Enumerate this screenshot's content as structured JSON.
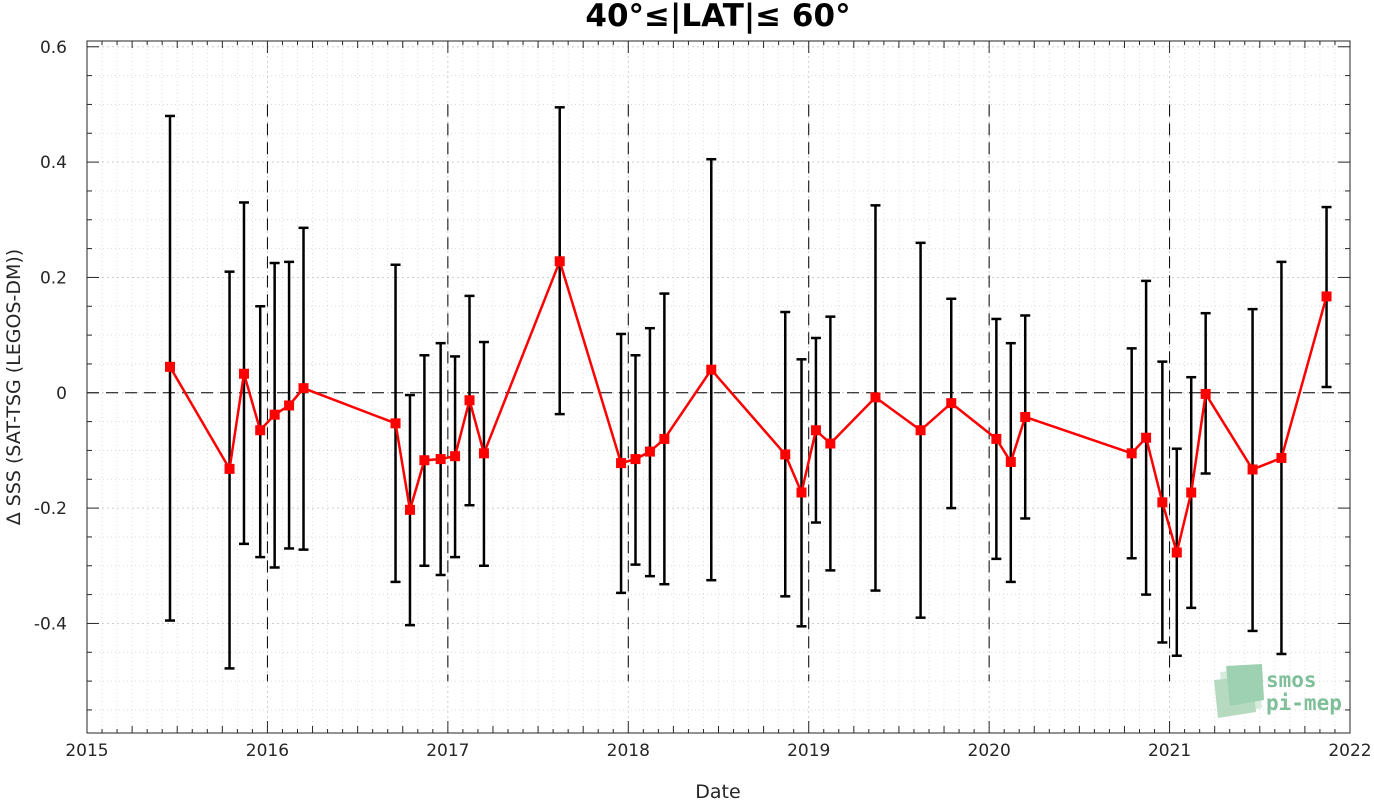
{
  "chart_data": {
    "type": "line",
    "title": "40°≤|LAT|≤ 60°",
    "xlabel": "Date",
    "ylabel": "Δ SSS (SAT-TSG (LEGOS-DM))",
    "xlim": [
      2015,
      2022
    ],
    "ylim": [
      -0.59,
      0.61
    ],
    "xticks": [
      "2015",
      "2016",
      "2017",
      "2018",
      "2019",
      "2020",
      "2021",
      "2022"
    ],
    "yticks": [
      "-0.4",
      "-0.2",
      "0",
      "0.2",
      "0.4",
      "0.6"
    ],
    "grid": true,
    "reference_line_y": 0,
    "year_dividers": [
      2016,
      2017,
      2018,
      2019,
      2020,
      2021
    ],
    "series": [
      {
        "color": "#ff0000",
        "marker": "square",
        "errorbar_color": "#000000",
        "points": [
          {
            "x": 2015.46,
            "y": 0.045,
            "low": -0.395,
            "high": 0.48
          },
          {
            "x": 2015.79,
            "y": -0.132,
            "low": -0.478,
            "high": 0.21
          },
          {
            "x": 2015.87,
            "y": 0.033,
            "low": -0.262,
            "high": 0.33
          },
          {
            "x": 2015.96,
            "y": -0.065,
            "low": -0.285,
            "high": 0.15
          },
          {
            "x": 2016.04,
            "y": -0.038,
            "low": -0.303,
            "high": 0.225
          },
          {
            "x": 2016.12,
            "y": -0.022,
            "low": -0.27,
            "high": 0.227
          },
          {
            "x": 2016.2,
            "y": 0.008,
            "low": -0.272,
            "high": 0.286
          },
          {
            "x": 2016.71,
            "y": -0.053,
            "low": -0.328,
            "high": 0.222
          },
          {
            "x": 2016.79,
            "y": -0.203,
            "low": -0.403,
            "high": -0.004
          },
          {
            "x": 2016.87,
            "y": -0.117,
            "low": -0.3,
            "high": 0.065
          },
          {
            "x": 2016.96,
            "y": -0.115,
            "low": -0.316,
            "high": 0.086
          },
          {
            "x": 2017.04,
            "y": -0.11,
            "low": -0.285,
            "high": 0.063
          },
          {
            "x": 2017.12,
            "y": -0.013,
            "low": -0.195,
            "high": 0.168
          },
          {
            "x": 2017.2,
            "y": -0.105,
            "low": -0.3,
            "high": 0.088
          },
          {
            "x": 2017.62,
            "y": 0.228,
            "low": -0.037,
            "high": 0.495
          },
          {
            "x": 2017.96,
            "y": -0.122,
            "low": -0.347,
            "high": 0.102
          },
          {
            "x": 2018.04,
            "y": -0.115,
            "low": -0.298,
            "high": 0.065
          },
          {
            "x": 2018.12,
            "y": -0.102,
            "low": -0.318,
            "high": 0.112
          },
          {
            "x": 2018.2,
            "y": -0.08,
            "low": -0.332,
            "high": 0.172
          },
          {
            "x": 2018.46,
            "y": 0.04,
            "low": -0.325,
            "high": 0.405
          },
          {
            "x": 2018.87,
            "y": -0.107,
            "low": -0.353,
            "high": 0.14
          },
          {
            "x": 2018.96,
            "y": -0.173,
            "low": -0.405,
            "high": 0.058
          },
          {
            "x": 2019.04,
            "y": -0.065,
            "low": -0.225,
            "high": 0.095
          },
          {
            "x": 2019.12,
            "y": -0.088,
            "low": -0.308,
            "high": 0.132
          },
          {
            "x": 2019.37,
            "y": -0.008,
            "low": -0.343,
            "high": 0.325
          },
          {
            "x": 2019.62,
            "y": -0.065,
            "low": -0.39,
            "high": 0.26
          },
          {
            "x": 2019.79,
            "y": -0.018,
            "low": -0.2,
            "high": 0.163
          },
          {
            "x": 2020.04,
            "y": -0.08,
            "low": -0.288,
            "high": 0.128
          },
          {
            "x": 2020.12,
            "y": -0.12,
            "low": -0.328,
            "high": 0.086
          },
          {
            "x": 2020.2,
            "y": -0.042,
            "low": -0.218,
            "high": 0.134
          },
          {
            "x": 2020.79,
            "y": -0.105,
            "low": -0.287,
            "high": 0.077
          },
          {
            "x": 2020.87,
            "y": -0.078,
            "low": -0.35,
            "high": 0.194
          },
          {
            "x": 2020.96,
            "y": -0.19,
            "low": -0.433,
            "high": 0.054
          },
          {
            "x": 2021.04,
            "y": -0.277,
            "low": -0.456,
            "high": -0.097
          },
          {
            "x": 2021.12,
            "y": -0.173,
            "low": -0.373,
            "high": 0.027
          },
          {
            "x": 2021.2,
            "y": -0.002,
            "low": -0.14,
            "high": 0.138
          },
          {
            "x": 2021.46,
            "y": -0.133,
            "low": -0.413,
            "high": 0.145
          },
          {
            "x": 2021.62,
            "y": -0.113,
            "low": -0.453,
            "high": 0.227
          },
          {
            "x": 2021.87,
            "y": 0.167,
            "low": 0.01,
            "high": 0.322
          }
        ]
      }
    ]
  },
  "logo": {
    "line1": "smos",
    "line2": "pi-mep",
    "color": "#7fbf9a"
  }
}
